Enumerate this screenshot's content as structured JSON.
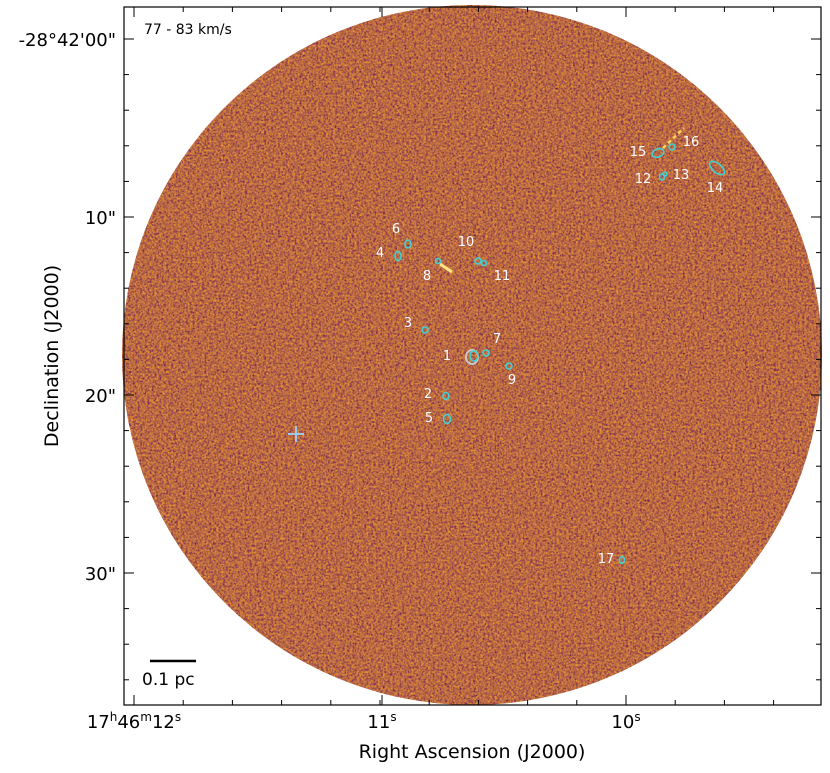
{
  "velocity_range_label": "77 - 83   km/s",
  "axes": {
    "xlabel": "Right Ascension (J2000)",
    "ylabel": "Declination (J2000)",
    "x_ticks": [
      {
        "h": "17",
        "m": "46",
        "s": "12",
        "main": "",
        "sup": ""
      },
      {
        "main": "11",
        "sup": "s"
      },
      {
        "main": "10",
        "sup": "s"
      }
    ],
    "y_ticks": [
      "-28°42'00\"",
      "10\"",
      "20\"",
      "30\""
    ]
  },
  "scale_bar_label": "0.1 pc",
  "colors": {
    "contour": "#3fd2d6",
    "label": "#ffffff",
    "marker": "#9fc8e8",
    "background_dark": "#2a0f3d",
    "background_mid": "#a0285a",
    "background_bright": "#f08020"
  },
  "sources": [
    {
      "id": "1"
    },
    {
      "id": "2"
    },
    {
      "id": "3"
    },
    {
      "id": "4"
    },
    {
      "id": "5"
    },
    {
      "id": "6"
    },
    {
      "id": "7"
    },
    {
      "id": "8"
    },
    {
      "id": "9"
    },
    {
      "id": "10"
    },
    {
      "id": "11"
    },
    {
      "id": "12"
    },
    {
      "id": "13"
    },
    {
      "id": "14"
    },
    {
      "id": "15"
    },
    {
      "id": "16"
    },
    {
      "id": "17"
    }
  ]
}
